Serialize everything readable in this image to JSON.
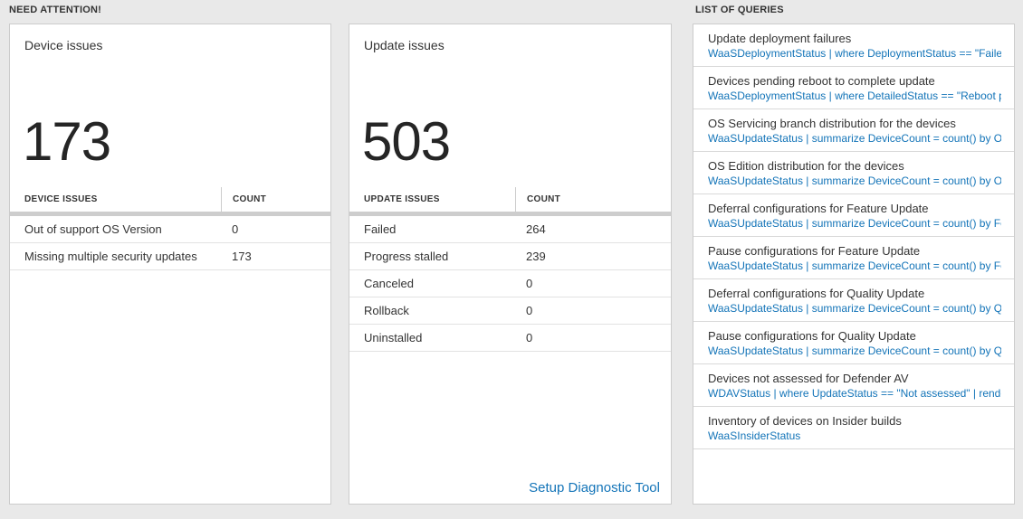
{
  "colors": {
    "accent_blue": "#1374b8",
    "page_bg": "#e9e9e9",
    "card_border": "#cccccc"
  },
  "headers": {
    "need_attention": "NEED ATTENTION!",
    "list_of_queries": "LIST OF QUERIES"
  },
  "device_card": {
    "title": "Device issues",
    "count": "173",
    "table": {
      "headers": [
        "DEVICE ISSUES",
        "COUNT"
      ],
      "rows": [
        {
          "label": "Out of support OS Version",
          "count": "0"
        },
        {
          "label": "Missing multiple security updates",
          "count": "173"
        }
      ]
    }
  },
  "update_card": {
    "title": "Update issues",
    "count": "503",
    "table": {
      "headers": [
        "UPDATE ISSUES",
        "COUNT"
      ],
      "rows": [
        {
          "label": "Failed",
          "count": "264"
        },
        {
          "label": "Progress stalled",
          "count": "239"
        },
        {
          "label": "Canceled",
          "count": "0"
        },
        {
          "label": "Rollback",
          "count": "0"
        },
        {
          "label": "Uninstalled",
          "count": "0"
        }
      ]
    },
    "footer_link": "Setup Diagnostic Tool"
  },
  "queries": {
    "items": [
      {
        "title": "Update deployment failures",
        "query": "WaaSDeploymentStatus | where DeploymentStatus == \"Failed\" |..."
      },
      {
        "title": "Devices pending reboot to complete update",
        "query": "WaaSDeploymentStatus | where DetailedStatus == \"Reboot pend..."
      },
      {
        "title": "OS Servicing branch distribution for the devices",
        "query": "WaaSUpdateStatus | summarize DeviceCount = count() by OSSer..."
      },
      {
        "title": "OS Edition distribution for the devices",
        "query": "WaaSUpdateStatus | summarize DeviceCount = count() by OSEdit..."
      },
      {
        "title": "Deferral configurations for Feature Update",
        "query": "WaaSUpdateStatus | summarize DeviceCount = count() by Featur..."
      },
      {
        "title": "Pause configurations for Feature Update",
        "query": "WaaSUpdateStatus | summarize DeviceCount = count() by Featur..."
      },
      {
        "title": "Deferral configurations for Quality Update",
        "query": "WaaSUpdateStatus | summarize DeviceCount = count() by Qualit..."
      },
      {
        "title": "Pause configurations for Quality Update",
        "query": "WaaSUpdateStatus | summarize DeviceCount = count() by Qualit..."
      },
      {
        "title": "Devices not assessed for Defender AV",
        "query": "WDAVStatus | where UpdateStatus == \"Not assessed\" | render ta..."
      },
      {
        "title": "Inventory of devices on Insider builds",
        "query": "WaaSInsiderStatus"
      }
    ]
  }
}
